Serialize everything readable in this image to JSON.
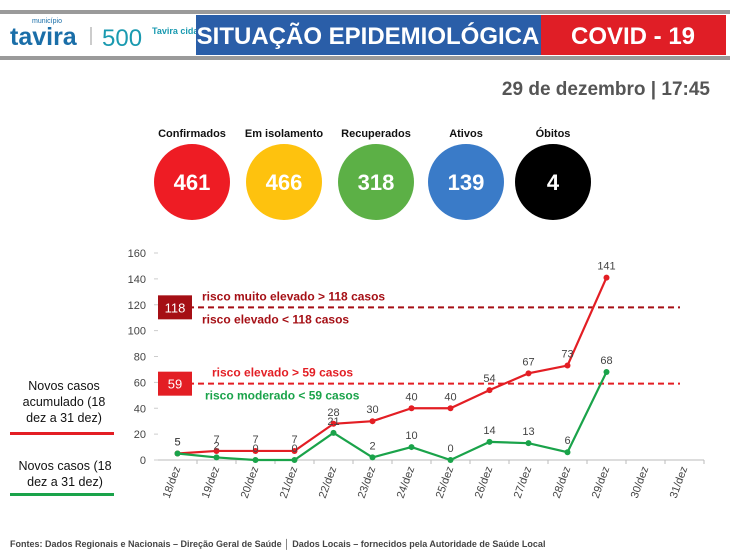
{
  "header": {
    "brand_small": "município",
    "brand": "tavira",
    "logo_number": "500",
    "logo_text": "Tavira cidade",
    "title": "SITUAÇÃO EPIDEMIOLÓGICA",
    "badge": "COVID - 19"
  },
  "date": "29 de dezembro | 17:45",
  "indicators": [
    {
      "label": "Confirmados",
      "value": 461,
      "color": "#ee1c24"
    },
    {
      "label": "Em isolamento",
      "value": 466,
      "color": "#fec20e"
    },
    {
      "label": "Recuperados",
      "value": 318,
      "color": "#5cb046"
    },
    {
      "label": "Ativos",
      "value": 139,
      "color": "#3a7bc8"
    },
    {
      "label": "Óbitos",
      "value": 4,
      "color": "#000000"
    }
  ],
  "chart_data": {
    "type": "line",
    "categories": [
      "18/dez",
      "19/dez",
      "20/dez",
      "21/dez",
      "22/dez",
      "23/dez",
      "24/dez",
      "25/dez",
      "26/dez",
      "27/dez",
      "28/dez",
      "29/dez",
      "30/dez",
      "31/dez"
    ],
    "series": [
      {
        "name": "Novos casos acumulado (18 dez a 31 dez)",
        "color": "#e31e24",
        "values": [
          5,
          7,
          7,
          7,
          28,
          30,
          40,
          40,
          54,
          67,
          73,
          141,
          null,
          null
        ]
      },
      {
        "name": "Novos casos (18 dez a 31 dez)",
        "color": "#1aa34a",
        "values": [
          5,
          2,
          0,
          0,
          21,
          2,
          10,
          0,
          14,
          13,
          6,
          68,
          null,
          null
        ]
      }
    ],
    "ylim": [
      0,
      160
    ],
    "yticks": [
      0,
      20,
      40,
      60,
      80,
      100,
      120,
      140,
      160
    ],
    "thresholds": [
      {
        "value": 118,
        "above": "risco muito elevado > 118 casos",
        "below": "risco elevado < 118 casos",
        "color": "#a50f15"
      },
      {
        "value": 59,
        "above": "risco elevado > 59 casos",
        "below": "risco moderado < 59 casos",
        "color": "#e31e24"
      }
    ]
  },
  "footer": "Fontes: Dados Regionais e Nacionais – Direção Geral de Saúde │ Dados Locais – fornecidos pela Autoridade de Saúde Local"
}
